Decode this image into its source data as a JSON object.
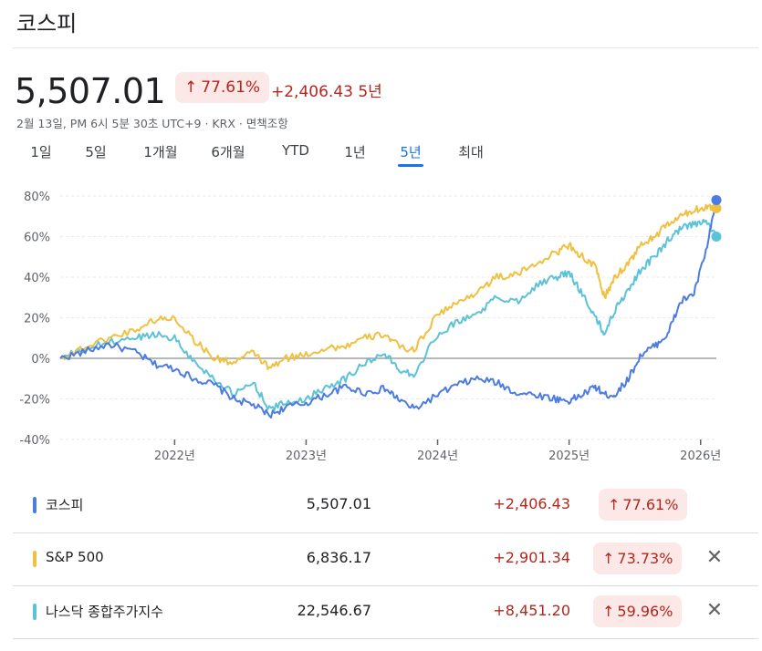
{
  "header": {
    "title": "코스피",
    "price": "5,507.01",
    "pct_change": "77.61%",
    "abs_change": "+2,406.43",
    "period": "5년",
    "timestamp": "2월 13일, PM 6시 5분 30초 UTC+9 · KRX · 면책조항"
  },
  "tabs": [
    {
      "label": "1일"
    },
    {
      "label": "5일"
    },
    {
      "label": "1개월"
    },
    {
      "label": "6개월"
    },
    {
      "label": "YTD"
    },
    {
      "label": "1년"
    },
    {
      "label": "5년",
      "active": true
    },
    {
      "label": "최대"
    }
  ],
  "legend": [
    {
      "name": "코스피",
      "value": "5,507.01",
      "change": "+2,406.43",
      "pct": "77.61%",
      "color": "#4c7ce0",
      "removable": false
    },
    {
      "name": "S&P 500",
      "value": "6,836.17",
      "change": "+2,901.34",
      "pct": "73.73%",
      "color": "#f0c040",
      "removable": true
    },
    {
      "name": "나스닥 종합주가지수",
      "value": "22,546.67",
      "change": "+8,451.20",
      "pct": "59.96%",
      "color": "#5bc2d8",
      "removable": true
    }
  ],
  "icons": {
    "up_arrow": "arrow-up-icon",
    "close": "close-icon"
  },
  "chart_data": {
    "type": "line",
    "x_ticks": [
      "2022년",
      "2023년",
      "2024년",
      "2025년",
      "2026년"
    ],
    "y_ticks": [
      "80%",
      "60%",
      "40%",
      "20%",
      "0%",
      "-20%",
      "-40%"
    ],
    "ylim": [
      -40,
      80
    ],
    "xlim": [
      2021.13,
      2026.12
    ],
    "x": [
      2021.13,
      2021.3,
      2021.5,
      2021.7,
      2021.85,
      2022.0,
      2022.15,
      2022.3,
      2022.45,
      2022.6,
      2022.72,
      2022.85,
      2023.0,
      2023.15,
      2023.3,
      2023.45,
      2023.6,
      2023.7,
      2023.82,
      2024.0,
      2024.15,
      2024.3,
      2024.45,
      2024.6,
      2024.75,
      2024.9,
      2025.0,
      2025.1,
      2025.2,
      2025.27,
      2025.35,
      2025.45,
      2025.55,
      2025.65,
      2025.75,
      2025.85,
      2025.95,
      2026.05,
      2026.12
    ],
    "series": [
      {
        "name": "코스피",
        "color": "#4c7ce0",
        "values": [
          0,
          3,
          7,
          3,
          -3,
          -5,
          -10,
          -13,
          -20,
          -23,
          -28,
          -24,
          -22,
          -18,
          -14,
          -17,
          -15,
          -20,
          -25,
          -18,
          -13,
          -10,
          -12,
          -17,
          -18,
          -20,
          -21,
          -18,
          -14,
          -18,
          -18,
          -10,
          2,
          6,
          12,
          28,
          32,
          55,
          78
        ]
      },
      {
        "name": "S&P 500",
        "color": "#f0c040",
        "values": [
          0,
          5,
          10,
          14,
          19,
          20,
          9,
          0,
          -2,
          3,
          -5,
          0,
          2,
          5,
          6,
          10,
          12,
          6,
          4,
          22,
          27,
          33,
          40,
          41,
          47,
          52,
          56,
          50,
          45,
          30,
          40,
          47,
          56,
          60,
          66,
          70,
          73,
          75,
          74
        ]
      },
      {
        "name": "나스닥 종합주가지수",
        "color": "#5bc2d8",
        "values": [
          0,
          4,
          8,
          10,
          12,
          10,
          -2,
          -10,
          -18,
          -12,
          -25,
          -22,
          -20,
          -14,
          -10,
          -2,
          2,
          -5,
          -8,
          12,
          18,
          22,
          30,
          28,
          36,
          40,
          42,
          32,
          20,
          12,
          24,
          34,
          44,
          50,
          58,
          64,
          66,
          67,
          60
        ]
      }
    ]
  }
}
